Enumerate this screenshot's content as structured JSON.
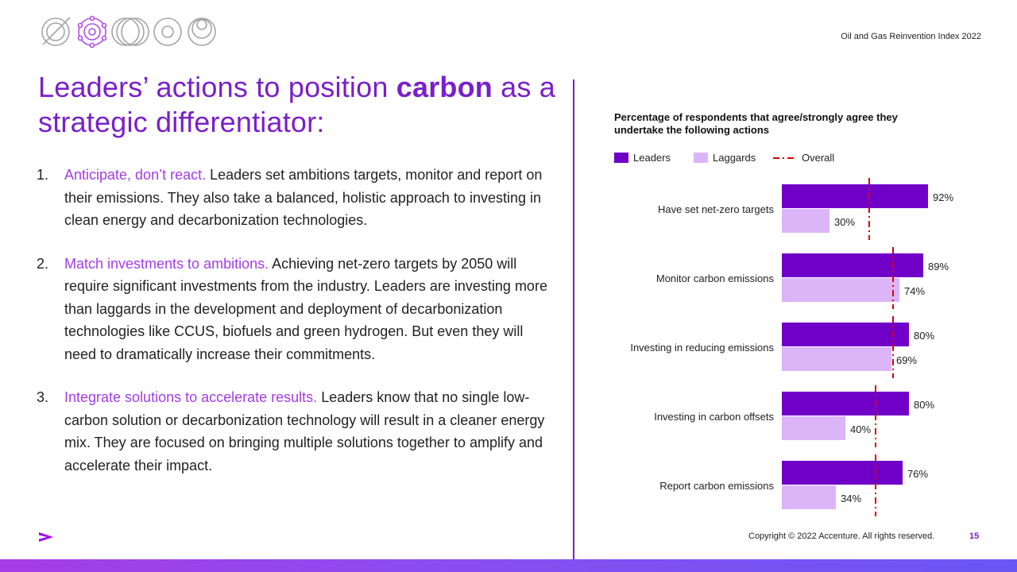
{
  "header": {
    "doc_title": "Oil and Gas Reinvention Index 2022",
    "logo_icons": [
      "target-circle-icon",
      "atom-network-icon",
      "overlapping-circles-icon",
      "concentric-circles-icon",
      "nested-circles-icon"
    ]
  },
  "headline": {
    "part1": "Leaders’ actions to position ",
    "bold": "carbon",
    "part2": " as a strategic differentiator:"
  },
  "points": [
    {
      "num": "1.",
      "lead": "Anticipate, don’t react.",
      "text": " Leaders set ambitions targets, monitor and report on their emissions. They also take a balanced, holistic approach to investing in clean energy and decarbonization technologies."
    },
    {
      "num": "2.",
      "lead": "Match investments to ambitions.",
      "text": " Achieving net-zero targets by 2050 will require significant investments from the industry. Leaders are investing more than laggards in the development and deployment of decarbonization technologies like CCUS, biofuels and green hydrogen. But even they will need to dramatically increase their commitments."
    },
    {
      "num": "3.",
      "lead": "Integrate solutions to accelerate results.",
      "text": " Leaders know that no single low-carbon solution or decarbonization technology will result in a cleaner energy mix. They are focused on bringing multiple solutions together to amplify and accelerate their impact."
    }
  ],
  "chart_data": {
    "type": "bar",
    "orientation": "horizontal",
    "title": "Percentage of respondents that agree/strongly agree they undertake the following actions",
    "categories": [
      "Have set net-zero targets",
      "Monitor carbon emissions",
      "Investing in reducing emissions",
      "Investing in carbon offsets",
      "Report carbon emissions"
    ],
    "series": [
      {
        "name": "Leaders",
        "values": [
          92,
          89,
          80,
          80,
          76
        ],
        "labels": [
          "92%",
          "89%",
          "80%",
          "80%",
          "76%"
        ],
        "color": "#7000c8"
      },
      {
        "name": "Laggards",
        "values": [
          30,
          74,
          69,
          40,
          34
        ],
        "labels": [
          "30%",
          "74%",
          "69%",
          "40%",
          "34%"
        ],
        "color": "#dcb4f8"
      },
      {
        "name": "Overall",
        "values": [
          55,
          70,
          70,
          59,
          59
        ],
        "style": "dash-dot",
        "color": "#e00000"
      }
    ],
    "xlim": [
      0,
      100
    ],
    "legend": "top",
    "grid": false
  },
  "footer": {
    "copyright": "Copyright © 2022 Accenture. All rights reserved.",
    "page": "15",
    "brand_icon": "accenture-chevron-icon"
  },
  "colors": {
    "accent": "#7a1fc9",
    "lead_text": "#a53ce8",
    "leaders": "#7000c8",
    "laggards": "#dcb4f8",
    "overall": "#e00000"
  }
}
